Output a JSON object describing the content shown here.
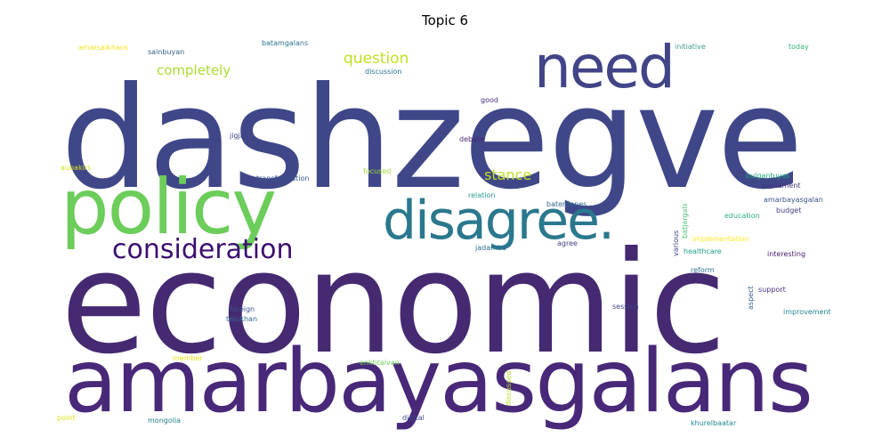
{
  "chart_data": {
    "type": "wordcloud",
    "title": "Topic 6",
    "words": [
      {
        "text": "dashzegve",
        "weight": 100,
        "color": "#3f4788"
      },
      {
        "text": "economic",
        "weight": 100,
        "color": "#452a72"
      },
      {
        "text": "amarbayasgalans",
        "weight": 62,
        "color": "#482878"
      },
      {
        "text": "policy",
        "weight": 56,
        "color": "#6ccd5a"
      },
      {
        "text": "need",
        "weight": 42,
        "color": "#414487"
      },
      {
        "text": "disagree.",
        "weight": 38,
        "color": "#2a788e"
      },
      {
        "text": "consideration",
        "weight": 19,
        "color": "#3b0f70"
      },
      {
        "text": "question",
        "weight": 11,
        "color": "#c2df23"
      },
      {
        "text": "stance",
        "weight": 10,
        "color": "#bddf26"
      },
      {
        "text": "completely",
        "weight": 9,
        "color": "#addc30"
      },
      {
        "text": "amarsaikhans",
        "weight": 5,
        "color": "#f0e41e"
      },
      {
        "text": "sainbuyan",
        "weight": 5,
        "color": "#33638d"
      },
      {
        "text": "batamgalans",
        "weight": 5,
        "color": "#2c728e"
      },
      {
        "text": "initiative",
        "weight": 5,
        "color": "#3d9b8a"
      },
      {
        "text": "today",
        "weight": 5,
        "color": "#35b779"
      },
      {
        "text": "discussion",
        "weight": 5,
        "color": "#2b758e"
      },
      {
        "text": "good",
        "weight": 5,
        "color": "#472d7b"
      },
      {
        "text": "jigjid",
        "weight": 5,
        "color": "#414487"
      },
      {
        "text": "debate",
        "weight": 5,
        "color": "#482475"
      },
      {
        "text": "aubakirs",
        "weight": 5,
        "color": "#d2e21b"
      },
      {
        "text": "focused",
        "weight": 5,
        "color": "#a5db36"
      },
      {
        "text": "transformation",
        "weight": 5,
        "color": "#39558c"
      },
      {
        "text": "bulgantuyas",
        "weight": 5,
        "color": "#22a884"
      },
      {
        "text": "parliament",
        "weight": 5,
        "color": "#46337e"
      },
      {
        "text": "relation",
        "weight": 5,
        "color": "#2a9b8a"
      },
      {
        "text": "baterdenes",
        "weight": 5,
        "color": "#31688e"
      },
      {
        "text": "batjargals",
        "weight": 5,
        "color": "#4ac16d"
      },
      {
        "text": "amarbayasgalan",
        "weight": 5,
        "color": "#3b528b"
      },
      {
        "text": "budget",
        "weight": 5,
        "color": "#433e85"
      },
      {
        "text": "education",
        "weight": 5,
        "color": "#29af7f"
      },
      {
        "text": "jadamba",
        "weight": 5,
        "color": "#2d708e"
      },
      {
        "text": "agree",
        "weight": 5,
        "color": "#424086"
      },
      {
        "text": "various",
        "weight": 5,
        "color": "#3e4989"
      },
      {
        "text": "implementation",
        "weight": 5,
        "color": "#fde725"
      },
      {
        "text": "healthcare",
        "weight": 5,
        "color": "#1f9e89"
      },
      {
        "text": "interesting",
        "weight": 5,
        "color": "#481a6c"
      },
      {
        "text": "reform",
        "weight": 5,
        "color": "#2e6f8e"
      },
      {
        "text": "support",
        "weight": 5,
        "color": "#46307e"
      },
      {
        "text": "aspect",
        "weight": 5,
        "color": "#355f8d"
      },
      {
        "text": "foreign",
        "weight": 5,
        "color": "#3b528b"
      },
      {
        "text": "telukhan",
        "weight": 5,
        "color": "#31688e"
      },
      {
        "text": "session",
        "weight": 5,
        "color": "#404688"
      },
      {
        "text": "improvement",
        "weight": 5,
        "color": "#25848e"
      },
      {
        "text": "member",
        "weight": 5,
        "color": "#e5e419"
      },
      {
        "text": "enkhtaivan",
        "weight": 5,
        "color": "#6ece58"
      },
      {
        "text": "discussed",
        "weight": 5,
        "color": "#b5de2b"
      },
      {
        "text": "point",
        "weight": 5,
        "color": "#dde318"
      },
      {
        "text": "mongolia",
        "weight": 5,
        "color": "#277f8e"
      },
      {
        "text": "digital",
        "weight": 5,
        "color": "#3e4a89"
      },
      {
        "text": "khurelbaatar",
        "weight": 5,
        "color": "#24868e"
      }
    ]
  }
}
